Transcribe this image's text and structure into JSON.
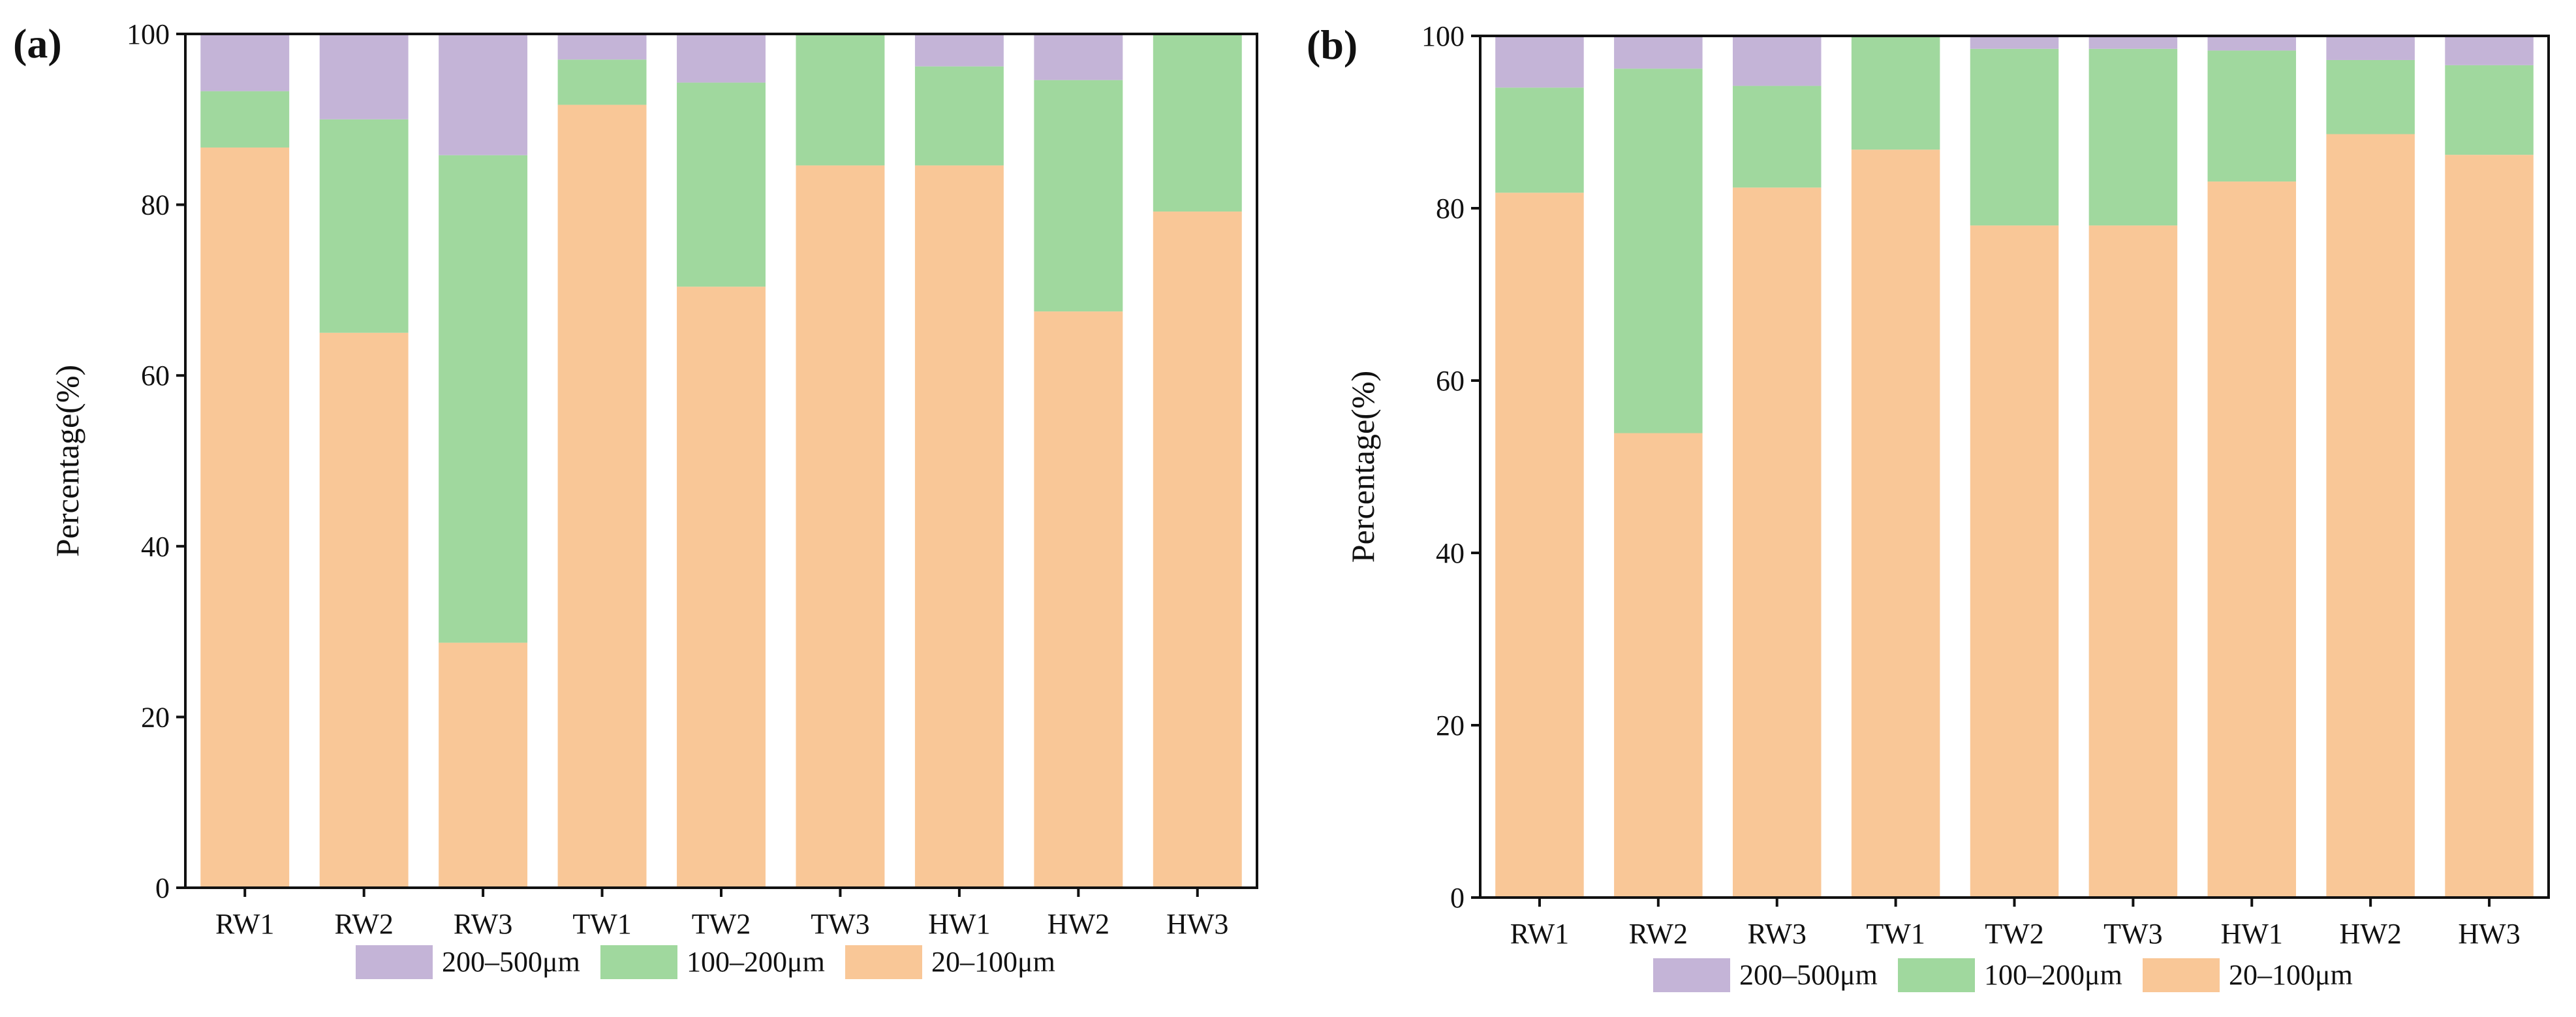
{
  "chart_data": [
    {
      "type": "bar",
      "stacked": true,
      "panel_label": "(a)",
      "ylabel": "Percentage(%)",
      "xlabel": "",
      "ylim": [
        0,
        100
      ],
      "yticks": [
        0,
        20,
        40,
        60,
        80,
        100
      ],
      "grid": false,
      "legend_position": "bottom",
      "categories": [
        "RW1",
        "RW2",
        "RW3",
        "TW1",
        "TW2",
        "TW3",
        "HW1",
        "HW2",
        "HW3"
      ],
      "series": [
        {
          "name": "20–100μm",
          "color": "#F9C797",
          "values": [
            86.7,
            65.0,
            28.7,
            91.7,
            70.4,
            84.6,
            84.6,
            67.5,
            79.2
          ]
        },
        {
          "name": "100–200μm",
          "color": "#A0D89E",
          "values": [
            6.6,
            25.0,
            57.1,
            5.3,
            23.9,
            15.4,
            11.6,
            27.1,
            20.8
          ]
        },
        {
          "name": "200–500μm",
          "color": "#C4B4D7",
          "values": [
            6.7,
            10.0,
            14.2,
            3.0,
            5.7,
            0.0,
            3.8,
            5.4,
            0.0
          ]
        }
      ],
      "legend_order": [
        "200–500μm",
        "100–200μm",
        "20–100μm"
      ]
    },
    {
      "type": "bar",
      "stacked": true,
      "panel_label": "(b)",
      "ylabel": "Percentage(%)",
      "xlabel": "",
      "ylim": [
        0,
        100
      ],
      "yticks": [
        0,
        20,
        40,
        60,
        80,
        100
      ],
      "grid": false,
      "legend_position": "bottom",
      "categories": [
        "RW1",
        "RW2",
        "RW3",
        "TW1",
        "TW2",
        "TW3",
        "HW1",
        "HW2",
        "HW3"
      ],
      "series": [
        {
          "name": "20–100μm",
          "color": "#F9C797",
          "values": [
            81.8,
            53.9,
            82.4,
            86.8,
            78.0,
            78.0,
            83.1,
            88.6,
            86.2
          ]
        },
        {
          "name": "100–200μm",
          "color": "#A0D89E",
          "values": [
            12.2,
            42.3,
            11.8,
            13.2,
            20.5,
            20.5,
            15.2,
            8.6,
            10.4
          ]
        },
        {
          "name": "200–500μm",
          "color": "#C4B4D7",
          "values": [
            6.0,
            3.8,
            5.8,
            0.0,
            1.5,
            1.5,
            1.7,
            2.8,
            3.4
          ]
        }
      ],
      "legend_order": [
        "200–500μm",
        "100–200μm",
        "20–100μm"
      ]
    }
  ]
}
